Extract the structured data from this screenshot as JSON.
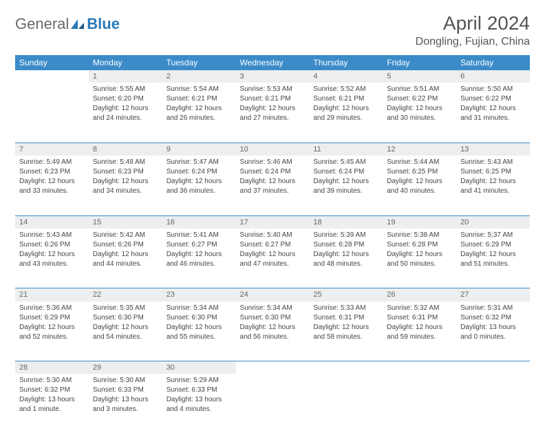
{
  "logo": {
    "text1": "General",
    "text2": "Blue"
  },
  "title": "April 2024",
  "location": "Dongling, Fujian, China",
  "colors": {
    "header_bg": "#3b8bc9",
    "header_fg": "#ffffff",
    "daynum_bg": "#eceeef",
    "text": "#444444",
    "logo_gray": "#6a6a6a",
    "logo_blue": "#2a7ab8"
  },
  "weekdays": [
    "Sunday",
    "Monday",
    "Tuesday",
    "Wednesday",
    "Thursday",
    "Friday",
    "Saturday"
  ],
  "weeks": [
    {
      "nums": [
        "",
        "1",
        "2",
        "3",
        "4",
        "5",
        "6"
      ],
      "cells": [
        null,
        {
          "sr": "Sunrise: 5:55 AM",
          "ss": "Sunset: 6:20 PM",
          "d1": "Daylight: 12 hours",
          "d2": "and 24 minutes."
        },
        {
          "sr": "Sunrise: 5:54 AM",
          "ss": "Sunset: 6:21 PM",
          "d1": "Daylight: 12 hours",
          "d2": "and 26 minutes."
        },
        {
          "sr": "Sunrise: 5:53 AM",
          "ss": "Sunset: 6:21 PM",
          "d1": "Daylight: 12 hours",
          "d2": "and 27 minutes."
        },
        {
          "sr": "Sunrise: 5:52 AM",
          "ss": "Sunset: 6:21 PM",
          "d1": "Daylight: 12 hours",
          "d2": "and 29 minutes."
        },
        {
          "sr": "Sunrise: 5:51 AM",
          "ss": "Sunset: 6:22 PM",
          "d1": "Daylight: 12 hours",
          "d2": "and 30 minutes."
        },
        {
          "sr": "Sunrise: 5:50 AM",
          "ss": "Sunset: 6:22 PM",
          "d1": "Daylight: 12 hours",
          "d2": "and 31 minutes."
        }
      ]
    },
    {
      "nums": [
        "7",
        "8",
        "9",
        "10",
        "11",
        "12",
        "13"
      ],
      "cells": [
        {
          "sr": "Sunrise: 5:49 AM",
          "ss": "Sunset: 6:23 PM",
          "d1": "Daylight: 12 hours",
          "d2": "and 33 minutes."
        },
        {
          "sr": "Sunrise: 5:48 AM",
          "ss": "Sunset: 6:23 PM",
          "d1": "Daylight: 12 hours",
          "d2": "and 34 minutes."
        },
        {
          "sr": "Sunrise: 5:47 AM",
          "ss": "Sunset: 6:24 PM",
          "d1": "Daylight: 12 hours",
          "d2": "and 36 minutes."
        },
        {
          "sr": "Sunrise: 5:46 AM",
          "ss": "Sunset: 6:24 PM",
          "d1": "Daylight: 12 hours",
          "d2": "and 37 minutes."
        },
        {
          "sr": "Sunrise: 5:45 AM",
          "ss": "Sunset: 6:24 PM",
          "d1": "Daylight: 12 hours",
          "d2": "and 39 minutes."
        },
        {
          "sr": "Sunrise: 5:44 AM",
          "ss": "Sunset: 6:25 PM",
          "d1": "Daylight: 12 hours",
          "d2": "and 40 minutes."
        },
        {
          "sr": "Sunrise: 5:43 AM",
          "ss": "Sunset: 6:25 PM",
          "d1": "Daylight: 12 hours",
          "d2": "and 41 minutes."
        }
      ]
    },
    {
      "nums": [
        "14",
        "15",
        "16",
        "17",
        "18",
        "19",
        "20"
      ],
      "cells": [
        {
          "sr": "Sunrise: 5:43 AM",
          "ss": "Sunset: 6:26 PM",
          "d1": "Daylight: 12 hours",
          "d2": "and 43 minutes."
        },
        {
          "sr": "Sunrise: 5:42 AM",
          "ss": "Sunset: 6:26 PM",
          "d1": "Daylight: 12 hours",
          "d2": "and 44 minutes."
        },
        {
          "sr": "Sunrise: 5:41 AM",
          "ss": "Sunset: 6:27 PM",
          "d1": "Daylight: 12 hours",
          "d2": "and 46 minutes."
        },
        {
          "sr": "Sunrise: 5:40 AM",
          "ss": "Sunset: 6:27 PM",
          "d1": "Daylight: 12 hours",
          "d2": "and 47 minutes."
        },
        {
          "sr": "Sunrise: 5:39 AM",
          "ss": "Sunset: 6:28 PM",
          "d1": "Daylight: 12 hours",
          "d2": "and 48 minutes."
        },
        {
          "sr": "Sunrise: 5:38 AM",
          "ss": "Sunset: 6:28 PM",
          "d1": "Daylight: 12 hours",
          "d2": "and 50 minutes."
        },
        {
          "sr": "Sunrise: 5:37 AM",
          "ss": "Sunset: 6:29 PM",
          "d1": "Daylight: 12 hours",
          "d2": "and 51 minutes."
        }
      ]
    },
    {
      "nums": [
        "21",
        "22",
        "23",
        "24",
        "25",
        "26",
        "27"
      ],
      "cells": [
        {
          "sr": "Sunrise: 5:36 AM",
          "ss": "Sunset: 6:29 PM",
          "d1": "Daylight: 12 hours",
          "d2": "and 52 minutes."
        },
        {
          "sr": "Sunrise: 5:35 AM",
          "ss": "Sunset: 6:30 PM",
          "d1": "Daylight: 12 hours",
          "d2": "and 54 minutes."
        },
        {
          "sr": "Sunrise: 5:34 AM",
          "ss": "Sunset: 6:30 PM",
          "d1": "Daylight: 12 hours",
          "d2": "and 55 minutes."
        },
        {
          "sr": "Sunrise: 5:34 AM",
          "ss": "Sunset: 6:30 PM",
          "d1": "Daylight: 12 hours",
          "d2": "and 56 minutes."
        },
        {
          "sr": "Sunrise: 5:33 AM",
          "ss": "Sunset: 6:31 PM",
          "d1": "Daylight: 12 hours",
          "d2": "and 58 minutes."
        },
        {
          "sr": "Sunrise: 5:32 AM",
          "ss": "Sunset: 6:31 PM",
          "d1": "Daylight: 12 hours",
          "d2": "and 59 minutes."
        },
        {
          "sr": "Sunrise: 5:31 AM",
          "ss": "Sunset: 6:32 PM",
          "d1": "Daylight: 13 hours",
          "d2": "and 0 minutes."
        }
      ]
    },
    {
      "nums": [
        "28",
        "29",
        "30",
        "",
        "",
        "",
        ""
      ],
      "cells": [
        {
          "sr": "Sunrise: 5:30 AM",
          "ss": "Sunset: 6:32 PM",
          "d1": "Daylight: 13 hours",
          "d2": "and 1 minute."
        },
        {
          "sr": "Sunrise: 5:30 AM",
          "ss": "Sunset: 6:33 PM",
          "d1": "Daylight: 13 hours",
          "d2": "and 3 minutes."
        },
        {
          "sr": "Sunrise: 5:29 AM",
          "ss": "Sunset: 6:33 PM",
          "d1": "Daylight: 13 hours",
          "d2": "and 4 minutes."
        },
        null,
        null,
        null,
        null
      ]
    }
  ]
}
